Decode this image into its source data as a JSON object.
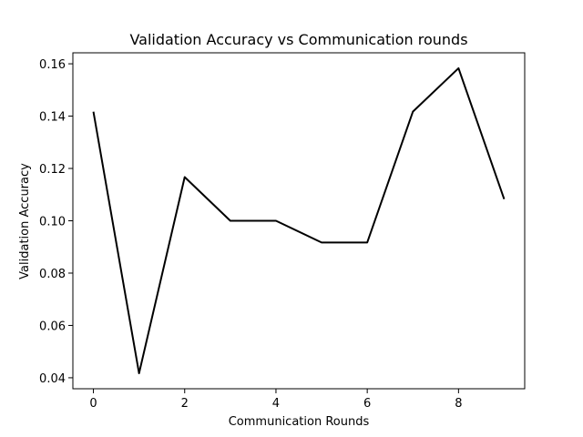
{
  "chart_data": {
    "type": "line",
    "title": "Validation Accuracy vs Communication rounds",
    "xlabel": "Communication Rounds",
    "ylabel": "Validation Accuracy",
    "xlim": [
      -0.45,
      9.45
    ],
    "ylim": [
      0.0358,
      0.1642
    ],
    "xticks": [
      0,
      2,
      4,
      6,
      8
    ],
    "xtick_labels": [
      "0",
      "2",
      "4",
      "6",
      "8"
    ],
    "yticks": [
      0.04,
      0.06,
      0.08,
      0.1,
      0.12,
      0.14,
      0.16
    ],
    "ytick_labels": [
      "0.04",
      "0.06",
      "0.08",
      "0.10",
      "0.12",
      "0.14",
      "0.16"
    ],
    "grid": false,
    "series": [
      {
        "color": "#000000",
        "x": [
          0,
          1,
          2,
          3,
          4,
          5,
          6,
          7,
          8,
          9
        ],
        "y": [
          0.1417,
          0.0417,
          0.1167,
          0.1,
          0.1,
          0.0917,
          0.0917,
          0.1417,
          0.1583,
          0.1083
        ]
      }
    ]
  }
}
